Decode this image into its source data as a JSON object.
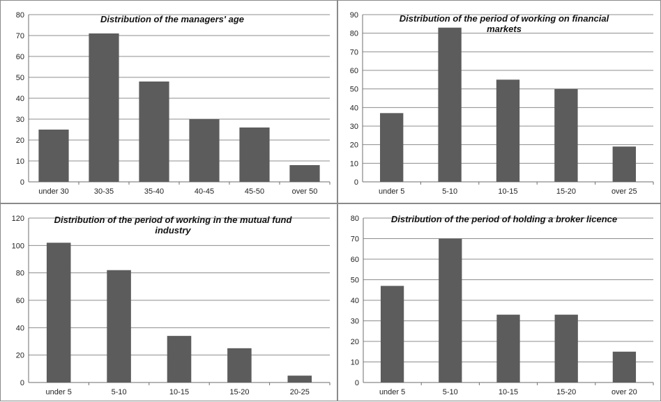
{
  "chart_data": [
    {
      "type": "bar",
      "title": [
        "Distribution of the managers' age"
      ],
      "categories": [
        "under 30",
        "30-35",
        "35-40",
        "40-45",
        "45-50",
        "over 50"
      ],
      "values": [
        25,
        71,
        48,
        30,
        26,
        8
      ],
      "ylim": [
        0,
        80
      ],
      "yticks": [
        0,
        10,
        20,
        30,
        40,
        50,
        60,
        70,
        80
      ],
      "grid": true,
      "bar_color": "#5c5c5c"
    },
    {
      "type": "bar",
      "title": [
        "Distribution of the period of working on financial",
        "markets"
      ],
      "categories": [
        "under 5",
        "5-10",
        "10-15",
        "15-20",
        "over 25"
      ],
      "values": [
        37,
        83,
        55,
        50,
        19
      ],
      "ylim": [
        0,
        90
      ],
      "yticks": [
        0,
        10,
        20,
        30,
        40,
        50,
        60,
        70,
        80,
        90
      ],
      "grid": true,
      "bar_color": "#5c5c5c"
    },
    {
      "type": "bar",
      "title": [
        "Distribution of the period of working in the mutual fund",
        "industry"
      ],
      "categories": [
        "under 5",
        "5-10",
        "10-15",
        "15-20",
        "20-25"
      ],
      "values": [
        102,
        82,
        34,
        25,
        5
      ],
      "ylim": [
        0,
        120
      ],
      "yticks": [
        0,
        20,
        40,
        60,
        80,
        100,
        120
      ],
      "grid": true,
      "bar_color": "#5c5c5c"
    },
    {
      "type": "bar",
      "title": [
        "Distribution of the period of holding a broker licence"
      ],
      "categories": [
        "under 5",
        "5-10",
        "10-15",
        "15-20",
        "over 20"
      ],
      "values": [
        47,
        70,
        33,
        33,
        15
      ],
      "ylim": [
        0,
        80
      ],
      "yticks": [
        0,
        10,
        20,
        30,
        40,
        50,
        60,
        70,
        80
      ],
      "grid": true,
      "bar_color": "#5c5c5c"
    }
  ]
}
